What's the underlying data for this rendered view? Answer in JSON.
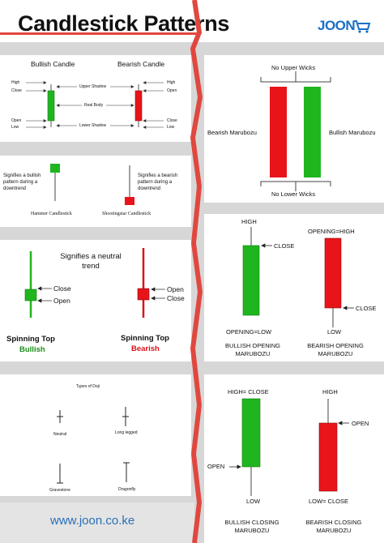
{
  "header": {
    "title": "Candlestick Patterns",
    "logo": "JOON",
    "cart_icon": "cart-icon"
  },
  "colors": {
    "bullish": "#1fb51f",
    "bearish": "#e8141a",
    "bearish_text": "#d8141a",
    "bullish_text": "#1a8d1a",
    "divider": "#e0483f"
  },
  "anatomy": {
    "bullish_title": "Bullish Candle",
    "bearish_title": "Bearish Candle",
    "left_labels": [
      "High",
      "Close",
      "Open",
      "Low"
    ],
    "right_labels": [
      "High",
      "Open",
      "Close",
      "Low"
    ],
    "center_labels": [
      "Upper Shadow",
      "Real Body",
      "Lower Shadow"
    ]
  },
  "hammer": {
    "desc_left": "Signifies a bullish pattern during a downtrend",
    "desc_right": "Signifies a bearish pattern during a downtrend",
    "label_left": "Hammer Candlestick",
    "label_right": "Shootingstar Candlestick"
  },
  "spinning": {
    "desc": "Signifies a neutral trend",
    "labels_left": [
      "Close",
      "Open"
    ],
    "labels_right": [
      "Open",
      "Close"
    ],
    "name_left": "Spinning Top",
    "sub_left": "Bullish",
    "name_right": "Spinning Top",
    "sub_right": "Bearish"
  },
  "doji": {
    "title": "Types of Doji",
    "types": [
      "Neutral",
      "Long legged",
      "Gravestone",
      "Dragonfly"
    ]
  },
  "marubozu": {
    "top": "No Upper Wicks",
    "bottom": "No Lower Wicks",
    "left": "Bearish Marubozu",
    "right": "Bullish Marubozu"
  },
  "opening": {
    "high": "HIGH",
    "close": "CLOSE",
    "open_low": "OPENING=LOW",
    "caption_left": "BULLISH OPENING MARUBOZU",
    "open_high": "OPENING=HIGH",
    "close_r": "CLOSE",
    "low": "LOW",
    "caption_right": "BEARISH OPENING MARUBOZU"
  },
  "closing": {
    "high_close": "HIGH= CLOSE",
    "open": "OPEN",
    "low": "LOW",
    "caption_left": "BULLISH CLOSING MARUBOZU",
    "high": "HIGH",
    "open_r": "OPEN",
    "low_close": "LOW= CLOSE",
    "caption_right": "BEARISH CLOSING MARUBOZU"
  },
  "footer": {
    "url": "www.joon.co.ke"
  }
}
